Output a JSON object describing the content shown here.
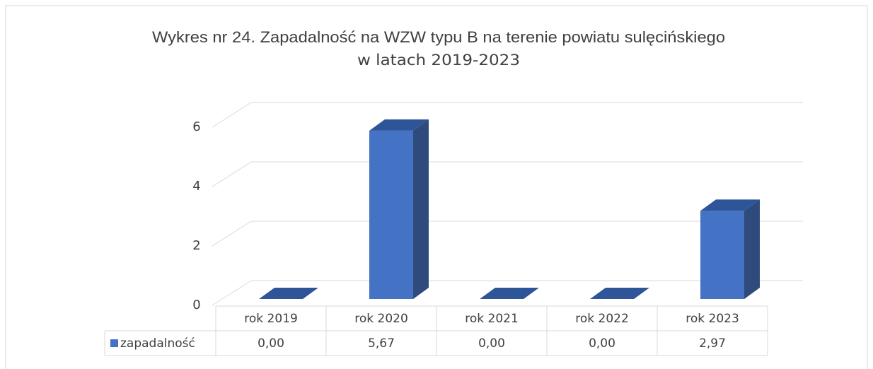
{
  "chart_data": {
    "type": "bar3d",
    "title": "Wykres nr 24. Zapadalność na WZW typu B na terenie powiatu sulęcińskiego",
    "subtitle": "w latach 2019-2023",
    "categories": [
      "rok 2019",
      "rok 2020",
      "rok 2021",
      "rok 2022",
      "rok 2023"
    ],
    "series": [
      {
        "name": "zapadalność",
        "color": "#4472c4",
        "values": [
          0,
          5.67,
          0,
          0,
          2.97
        ],
        "value_labels": [
          "0,00",
          "5,67",
          "0,00",
          "0,00",
          "2,97"
        ]
      }
    ],
    "ylim": [
      0,
      6
    ],
    "yticks": [
      0,
      2,
      4,
      6
    ],
    "grid": true,
    "data_table": true
  }
}
